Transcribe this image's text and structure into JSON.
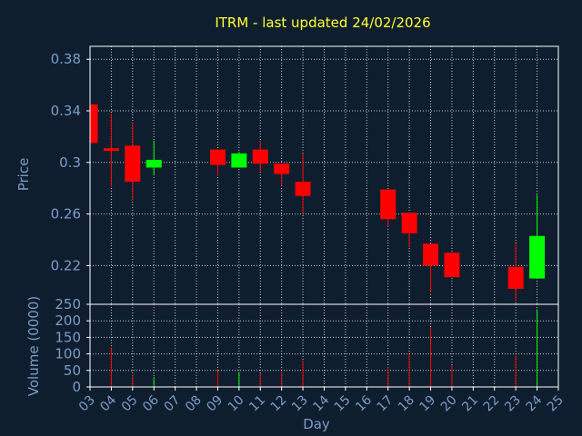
{
  "chart_data": {
    "type": "candlestick",
    "title": "ITRM - last updated 24/02/2026",
    "xlabel": "Day",
    "price_panel": {
      "ylabel": "Price",
      "ylim": [
        0.19,
        0.39
      ],
      "yticks": [
        "0.38",
        "0.34",
        "0.3",
        "0.26",
        "0.22"
      ],
      "ytick_values": [
        0.38,
        0.34,
        0.3,
        0.26,
        0.22
      ]
    },
    "volume_panel": {
      "ylabel": "Volume (0000)",
      "ylim": [
        0,
        250
      ],
      "yticks": [
        "250",
        "200",
        "150",
        "100",
        "50",
        "0"
      ],
      "ytick_values": [
        250,
        200,
        150,
        100,
        50,
        0
      ]
    },
    "x_range": [
      3,
      25
    ],
    "x_ticks": [
      "03",
      "04",
      "05",
      "06",
      "07",
      "08",
      "09",
      "10",
      "11",
      "12",
      "13",
      "14",
      "15",
      "16",
      "17",
      "18",
      "19",
      "20",
      "21",
      "22",
      "23",
      "24",
      "25"
    ],
    "colors": {
      "up": "#00ff00",
      "down": "#ff0000",
      "grid": "#ffffff",
      "axis_text": "#7a9cc6",
      "title": "#ffff33",
      "background": "#0f1e2e"
    },
    "grid": true,
    "candles": [
      {
        "day": 3,
        "open": 0.345,
        "high": 0.345,
        "low": 0.315,
        "close": 0.315
      },
      {
        "day": 4,
        "open": 0.311,
        "high": 0.338,
        "low": 0.281,
        "close": 0.309
      },
      {
        "day": 5,
        "open": 0.313,
        "high": 0.331,
        "low": 0.271,
        "close": 0.285
      },
      {
        "day": 6,
        "open": 0.296,
        "high": 0.317,
        "low": 0.29,
        "close": 0.302
      },
      {
        "day": 9,
        "open": 0.31,
        "high": 0.31,
        "low": 0.29,
        "close": 0.298
      },
      {
        "day": 10,
        "open": 0.296,
        "high": 0.308,
        "low": 0.296,
        "close": 0.307
      },
      {
        "day": 11,
        "open": 0.31,
        "high": 0.317,
        "low": 0.293,
        "close": 0.299
      },
      {
        "day": 12,
        "open": 0.299,
        "high": 0.299,
        "low": 0.282,
        "close": 0.291
      },
      {
        "day": 13,
        "open": 0.285,
        "high": 0.307,
        "low": 0.26,
        "close": 0.274
      },
      {
        "day": 17,
        "open": 0.279,
        "high": 0.279,
        "low": 0.25,
        "close": 0.256
      },
      {
        "day": 18,
        "open": 0.261,
        "high": 0.261,
        "low": 0.234,
        "close": 0.245
      },
      {
        "day": 19,
        "open": 0.237,
        "high": 0.237,
        "low": 0.199,
        "close": 0.22
      },
      {
        "day": 20,
        "open": 0.23,
        "high": 0.23,
        "low": 0.211,
        "close": 0.211
      },
      {
        "day": 23,
        "open": 0.219,
        "high": 0.237,
        "low": 0.193,
        "close": 0.202
      },
      {
        "day": 24,
        "open": 0.21,
        "high": 0.275,
        "low": 0.21,
        "close": 0.243
      }
    ],
    "volume": [
      {
        "day": 4,
        "value": 120,
        "dir": "down"
      },
      {
        "day": 5,
        "value": 35,
        "dir": "down"
      },
      {
        "day": 6,
        "value": 30,
        "dir": "up"
      },
      {
        "day": 9,
        "value": 50,
        "dir": "down"
      },
      {
        "day": 10,
        "value": 45,
        "dir": "up"
      },
      {
        "day": 11,
        "value": 40,
        "dir": "down"
      },
      {
        "day": 12,
        "value": 45,
        "dir": "down"
      },
      {
        "day": 13,
        "value": 80,
        "dir": "down"
      },
      {
        "day": 17,
        "value": 60,
        "dir": "down"
      },
      {
        "day": 18,
        "value": 100,
        "dir": "down"
      },
      {
        "day": 19,
        "value": 180,
        "dir": "down"
      },
      {
        "day": 20,
        "value": 65,
        "dir": "down"
      },
      {
        "day": 23,
        "value": 95,
        "dir": "down"
      },
      {
        "day": 24,
        "value": 235,
        "dir": "up"
      }
    ]
  }
}
